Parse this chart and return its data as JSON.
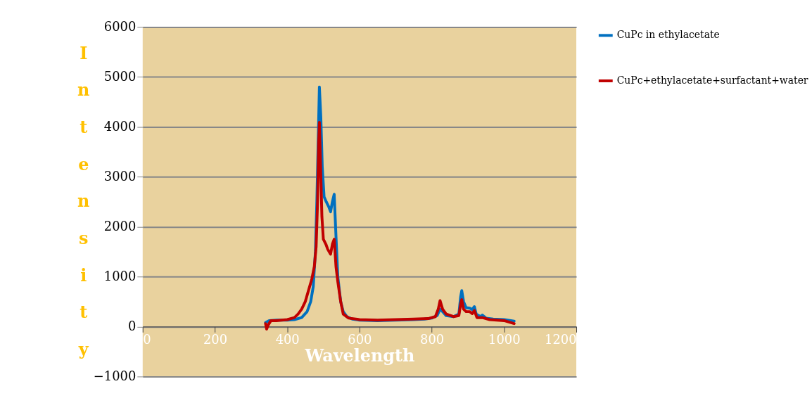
{
  "chart_data": {
    "type": "line",
    "xlabel": "Wavelength",
    "ylabel": "Intensity",
    "xlim": [
      0,
      1200
    ],
    "xticks": [
      0,
      200,
      400,
      600,
      800,
      1000,
      1200
    ],
    "ylim": [
      -1000,
      6000
    ],
    "yticks": [
      -1000,
      0,
      1000,
      2000,
      3000,
      4000,
      5000,
      6000
    ],
    "grid": "y",
    "legend": "right",
    "marker": "none",
    "line_style": "solid",
    "series": [
      {
        "name": "CuPc in ethylacetate",
        "color": "#0070c0",
        "x": [
          340,
          350,
          370,
          400,
          420,
          440,
          455,
          465,
          472,
          478,
          482,
          486,
          489,
          493,
          497,
          502,
          508,
          515,
          520,
          525,
          530,
          535,
          540,
          548,
          555,
          565,
          580,
          600,
          650,
          700,
          750,
          780,
          800,
          815,
          823,
          830,
          840,
          860,
          875,
          880,
          883,
          888,
          895,
          905,
          912,
          918,
          923,
          935,
          940,
          950,
          970,
          1000,
          1028
        ],
        "values": [
          80,
          120,
          130,
          130,
          140,
          180,
          300,
          500,
          800,
          1500,
          2500,
          3800,
          4800,
          4200,
          3200,
          2600,
          2500,
          2400,
          2300,
          2500,
          2650,
          1800,
          1000,
          500,
          300,
          200,
          150,
          130,
          120,
          130,
          140,
          150,
          170,
          220,
          350,
          300,
          220,
          200,
          250,
          600,
          720,
          500,
          380,
          370,
          340,
          400,
          250,
          200,
          230,
          170,
          150,
          140,
          110
        ]
      },
      {
        "name": "CuPc+ethylacetate+surfactant+water",
        "color": "#c00000",
        "x": [
          340,
          343,
          348,
          355,
          370,
          400,
          420,
          430,
          440,
          450,
          460,
          468,
          475,
          480,
          484,
          487,
          489,
          492,
          496,
          500,
          507,
          512,
          520,
          525,
          530,
          535,
          540,
          548,
          555,
          570,
          600,
          650,
          700,
          750,
          790,
          810,
          818,
          823,
          830,
          840,
          860,
          875,
          880,
          883,
          888,
          895,
          905,
          912,
          918,
          925,
          940,
          960,
          1000,
          1028
        ],
        "values": [
          60,
          -50,
          40,
          120,
          120,
          140,
          180,
          250,
          350,
          500,
          750,
          950,
          1200,
          1600,
          2500,
          3700,
          4090,
          3300,
          2200,
          1750,
          1650,
          1550,
          1450,
          1650,
          1750,
          1200,
          900,
          500,
          250,
          170,
          140,
          130,
          140,
          150,
          160,
          200,
          350,
          520,
          350,
          250,
          200,
          220,
          450,
          540,
          350,
          300,
          300,
          260,
          320,
          180,
          180,
          140,
          120,
          60
        ]
      }
    ]
  }
}
